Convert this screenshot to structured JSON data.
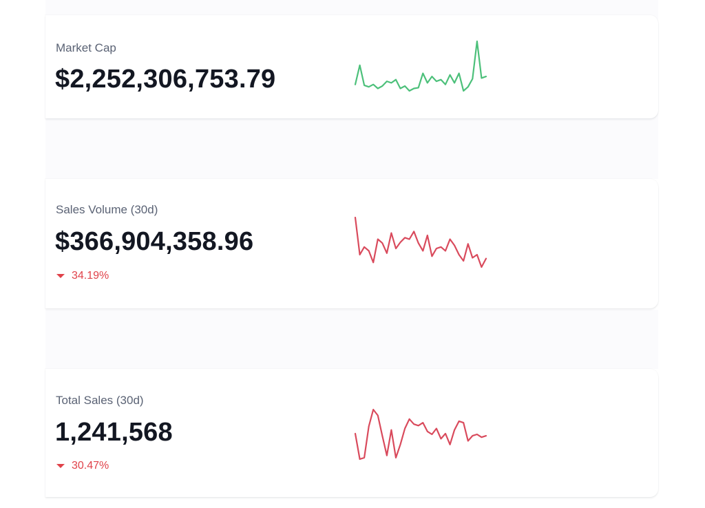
{
  "stats": [
    {
      "label": "Market Cap",
      "value": "$2,252,306,753.79",
      "change": "",
      "trend_color": "#4cc07a",
      "sparkline": [
        38,
        62,
        37,
        35,
        38,
        33,
        36,
        42,
        40,
        44,
        33,
        36,
        30,
        33,
        34,
        52,
        40,
        48,
        42,
        44,
        38,
        50,
        40,
        52,
        30,
        35,
        45,
        92,
        46,
        48
      ]
    },
    {
      "label": "Sales Volume (30d)",
      "value": "$366,904,358.96",
      "change": "34.19%",
      "trend_color": "#d94a5c",
      "sparkline": [
        88,
        40,
        50,
        45,
        30,
        60,
        55,
        42,
        68,
        48,
        56,
        62,
        60,
        70,
        55,
        45,
        65,
        38,
        48,
        50,
        45,
        60,
        52,
        40,
        32,
        54,
        36,
        40,
        24,
        35
      ]
    },
    {
      "label": "Total Sales (30d)",
      "value": "1,241,568",
      "change": "30.47%",
      "trend_color": "#d94a5c",
      "sparkline": [
        55,
        20,
        22,
        65,
        88,
        80,
        52,
        25,
        60,
        22,
        40,
        62,
        75,
        68,
        66,
        70,
        58,
        54,
        62,
        48,
        55,
        40,
        60,
        72,
        70,
        45,
        52,
        54,
        50,
        52
      ]
    }
  ]
}
